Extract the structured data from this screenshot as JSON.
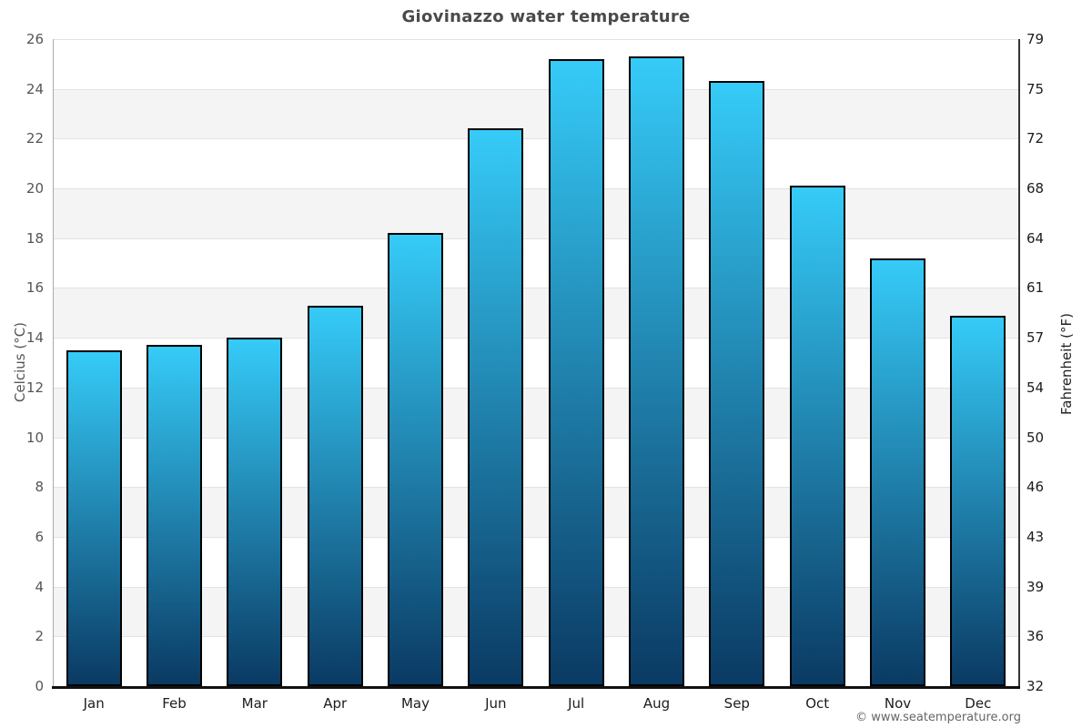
{
  "header": {
    "title": "Giovinazzo water temperature"
  },
  "footer": {
    "copyright": "© www.seatemperature.org"
  },
  "chart_data": {
    "type": "bar",
    "title": "Giovinazzo water temperature",
    "categories": [
      "Jan",
      "Feb",
      "Mar",
      "Apr",
      "May",
      "Jun",
      "Jul",
      "Aug",
      "Sep",
      "Oct",
      "Nov",
      "Dec"
    ],
    "values": [
      13.5,
      13.7,
      14.0,
      15.3,
      18.2,
      22.4,
      25.2,
      25.3,
      24.3,
      20.1,
      17.2,
      14.9
    ],
    "unit": "°C",
    "ylabel": "Celcius (°C)",
    "ylabel_right": "Fahrenheit (°F)",
    "ylim": [
      0,
      26
    ],
    "ytick_step": 2,
    "yticks_left": [
      26,
      24,
      22,
      20,
      18,
      16,
      14,
      12,
      10,
      8,
      6,
      4,
      2,
      0
    ],
    "yticks_right": [
      79,
      75,
      72,
      68,
      64,
      61,
      57,
      54,
      50,
      46,
      43,
      39,
      36,
      32
    ],
    "legend": null,
    "grid": "alternating horizontal bands every 2°C with light gridlines",
    "colors": {
      "bar_gradient_top": "#36cbf8",
      "bar_gradient_bottom": "#0a3a63",
      "bar_border": "#000000",
      "band_white": "#ffffff",
      "band_gray": "#f4f4f4",
      "gridline": "#e2e2e2",
      "axis_bottom": "#111111",
      "spine_left": "#aaaaaa",
      "spine_right": "#333333",
      "title_color": "#4a4a4a"
    }
  }
}
